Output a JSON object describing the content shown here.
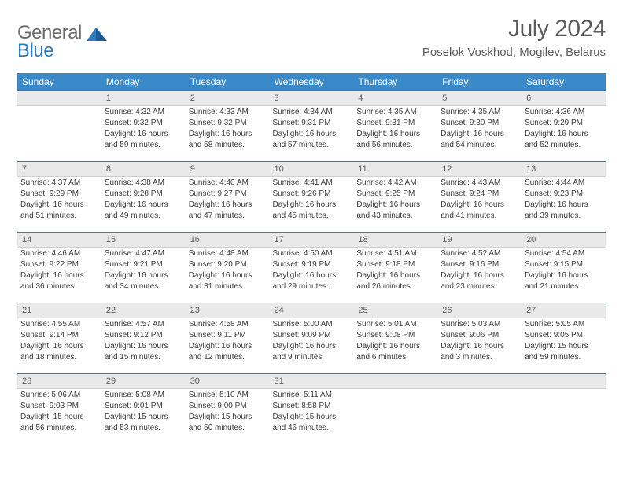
{
  "logo": {
    "general": "General",
    "blue": "Blue"
  },
  "title": {
    "month": "July 2024",
    "location": "Poselok Voskhod, Mogilev, Belarus"
  },
  "colors": {
    "header_bg": "#3a89c9",
    "header_fg": "#ffffff",
    "daynum_bg": "#e9e9e9",
    "rule": "#3a7aa8",
    "logo_gray": "#6b6b6b",
    "logo_blue": "#2f7ac0",
    "text": "#3b3b3b"
  },
  "fonts": {
    "title_size_pt": 30,
    "loc_size_pt": 15,
    "dow_size_pt": 12,
    "cell_size_pt": 10
  },
  "days_of_week": [
    "Sunday",
    "Monday",
    "Tuesday",
    "Wednesday",
    "Thursday",
    "Friday",
    "Saturday"
  ],
  "weeks": [
    [
      {
        "day": "",
        "sunrise": "",
        "sunset": "",
        "daylight1": "",
        "daylight2": ""
      },
      {
        "day": "1",
        "sunrise": "Sunrise: 4:32 AM",
        "sunset": "Sunset: 9:32 PM",
        "daylight1": "Daylight: 16 hours",
        "daylight2": "and 59 minutes."
      },
      {
        "day": "2",
        "sunrise": "Sunrise: 4:33 AM",
        "sunset": "Sunset: 9:32 PM",
        "daylight1": "Daylight: 16 hours",
        "daylight2": "and 58 minutes."
      },
      {
        "day": "3",
        "sunrise": "Sunrise: 4:34 AM",
        "sunset": "Sunset: 9:31 PM",
        "daylight1": "Daylight: 16 hours",
        "daylight2": "and 57 minutes."
      },
      {
        "day": "4",
        "sunrise": "Sunrise: 4:35 AM",
        "sunset": "Sunset: 9:31 PM",
        "daylight1": "Daylight: 16 hours",
        "daylight2": "and 56 minutes."
      },
      {
        "day": "5",
        "sunrise": "Sunrise: 4:35 AM",
        "sunset": "Sunset: 9:30 PM",
        "daylight1": "Daylight: 16 hours",
        "daylight2": "and 54 minutes."
      },
      {
        "day": "6",
        "sunrise": "Sunrise: 4:36 AM",
        "sunset": "Sunset: 9:29 PM",
        "daylight1": "Daylight: 16 hours",
        "daylight2": "and 52 minutes."
      }
    ],
    [
      {
        "day": "7",
        "sunrise": "Sunrise: 4:37 AM",
        "sunset": "Sunset: 9:29 PM",
        "daylight1": "Daylight: 16 hours",
        "daylight2": "and 51 minutes."
      },
      {
        "day": "8",
        "sunrise": "Sunrise: 4:38 AM",
        "sunset": "Sunset: 9:28 PM",
        "daylight1": "Daylight: 16 hours",
        "daylight2": "and 49 minutes."
      },
      {
        "day": "9",
        "sunrise": "Sunrise: 4:40 AM",
        "sunset": "Sunset: 9:27 PM",
        "daylight1": "Daylight: 16 hours",
        "daylight2": "and 47 minutes."
      },
      {
        "day": "10",
        "sunrise": "Sunrise: 4:41 AM",
        "sunset": "Sunset: 9:26 PM",
        "daylight1": "Daylight: 16 hours",
        "daylight2": "and 45 minutes."
      },
      {
        "day": "11",
        "sunrise": "Sunrise: 4:42 AM",
        "sunset": "Sunset: 9:25 PM",
        "daylight1": "Daylight: 16 hours",
        "daylight2": "and 43 minutes."
      },
      {
        "day": "12",
        "sunrise": "Sunrise: 4:43 AM",
        "sunset": "Sunset: 9:24 PM",
        "daylight1": "Daylight: 16 hours",
        "daylight2": "and 41 minutes."
      },
      {
        "day": "13",
        "sunrise": "Sunrise: 4:44 AM",
        "sunset": "Sunset: 9:23 PM",
        "daylight1": "Daylight: 16 hours",
        "daylight2": "and 39 minutes."
      }
    ],
    [
      {
        "day": "14",
        "sunrise": "Sunrise: 4:46 AM",
        "sunset": "Sunset: 9:22 PM",
        "daylight1": "Daylight: 16 hours",
        "daylight2": "and 36 minutes."
      },
      {
        "day": "15",
        "sunrise": "Sunrise: 4:47 AM",
        "sunset": "Sunset: 9:21 PM",
        "daylight1": "Daylight: 16 hours",
        "daylight2": "and 34 minutes."
      },
      {
        "day": "16",
        "sunrise": "Sunrise: 4:48 AM",
        "sunset": "Sunset: 9:20 PM",
        "daylight1": "Daylight: 16 hours",
        "daylight2": "and 31 minutes."
      },
      {
        "day": "17",
        "sunrise": "Sunrise: 4:50 AM",
        "sunset": "Sunset: 9:19 PM",
        "daylight1": "Daylight: 16 hours",
        "daylight2": "and 29 minutes."
      },
      {
        "day": "18",
        "sunrise": "Sunrise: 4:51 AM",
        "sunset": "Sunset: 9:18 PM",
        "daylight1": "Daylight: 16 hours",
        "daylight2": "and 26 minutes."
      },
      {
        "day": "19",
        "sunrise": "Sunrise: 4:52 AM",
        "sunset": "Sunset: 9:16 PM",
        "daylight1": "Daylight: 16 hours",
        "daylight2": "and 23 minutes."
      },
      {
        "day": "20",
        "sunrise": "Sunrise: 4:54 AM",
        "sunset": "Sunset: 9:15 PM",
        "daylight1": "Daylight: 16 hours",
        "daylight2": "and 21 minutes."
      }
    ],
    [
      {
        "day": "21",
        "sunrise": "Sunrise: 4:55 AM",
        "sunset": "Sunset: 9:14 PM",
        "daylight1": "Daylight: 16 hours",
        "daylight2": "and 18 minutes."
      },
      {
        "day": "22",
        "sunrise": "Sunrise: 4:57 AM",
        "sunset": "Sunset: 9:12 PM",
        "daylight1": "Daylight: 16 hours",
        "daylight2": "and 15 minutes."
      },
      {
        "day": "23",
        "sunrise": "Sunrise: 4:58 AM",
        "sunset": "Sunset: 9:11 PM",
        "daylight1": "Daylight: 16 hours",
        "daylight2": "and 12 minutes."
      },
      {
        "day": "24",
        "sunrise": "Sunrise: 5:00 AM",
        "sunset": "Sunset: 9:09 PM",
        "daylight1": "Daylight: 16 hours",
        "daylight2": "and 9 minutes."
      },
      {
        "day": "25",
        "sunrise": "Sunrise: 5:01 AM",
        "sunset": "Sunset: 9:08 PM",
        "daylight1": "Daylight: 16 hours",
        "daylight2": "and 6 minutes."
      },
      {
        "day": "26",
        "sunrise": "Sunrise: 5:03 AM",
        "sunset": "Sunset: 9:06 PM",
        "daylight1": "Daylight: 16 hours",
        "daylight2": "and 3 minutes."
      },
      {
        "day": "27",
        "sunrise": "Sunrise: 5:05 AM",
        "sunset": "Sunset: 9:05 PM",
        "daylight1": "Daylight: 15 hours",
        "daylight2": "and 59 minutes."
      }
    ],
    [
      {
        "day": "28",
        "sunrise": "Sunrise: 5:06 AM",
        "sunset": "Sunset: 9:03 PM",
        "daylight1": "Daylight: 15 hours",
        "daylight2": "and 56 minutes."
      },
      {
        "day": "29",
        "sunrise": "Sunrise: 5:08 AM",
        "sunset": "Sunset: 9:01 PM",
        "daylight1": "Daylight: 15 hours",
        "daylight2": "and 53 minutes."
      },
      {
        "day": "30",
        "sunrise": "Sunrise: 5:10 AM",
        "sunset": "Sunset: 9:00 PM",
        "daylight1": "Daylight: 15 hours",
        "daylight2": "and 50 minutes."
      },
      {
        "day": "31",
        "sunrise": "Sunrise: 5:11 AM",
        "sunset": "Sunset: 8:58 PM",
        "daylight1": "Daylight: 15 hours",
        "daylight2": "and 46 minutes."
      },
      {
        "day": "",
        "sunrise": "",
        "sunset": "",
        "daylight1": "",
        "daylight2": ""
      },
      {
        "day": "",
        "sunrise": "",
        "sunset": "",
        "daylight1": "",
        "daylight2": ""
      },
      {
        "day": "",
        "sunrise": "",
        "sunset": "",
        "daylight1": "",
        "daylight2": ""
      }
    ]
  ]
}
